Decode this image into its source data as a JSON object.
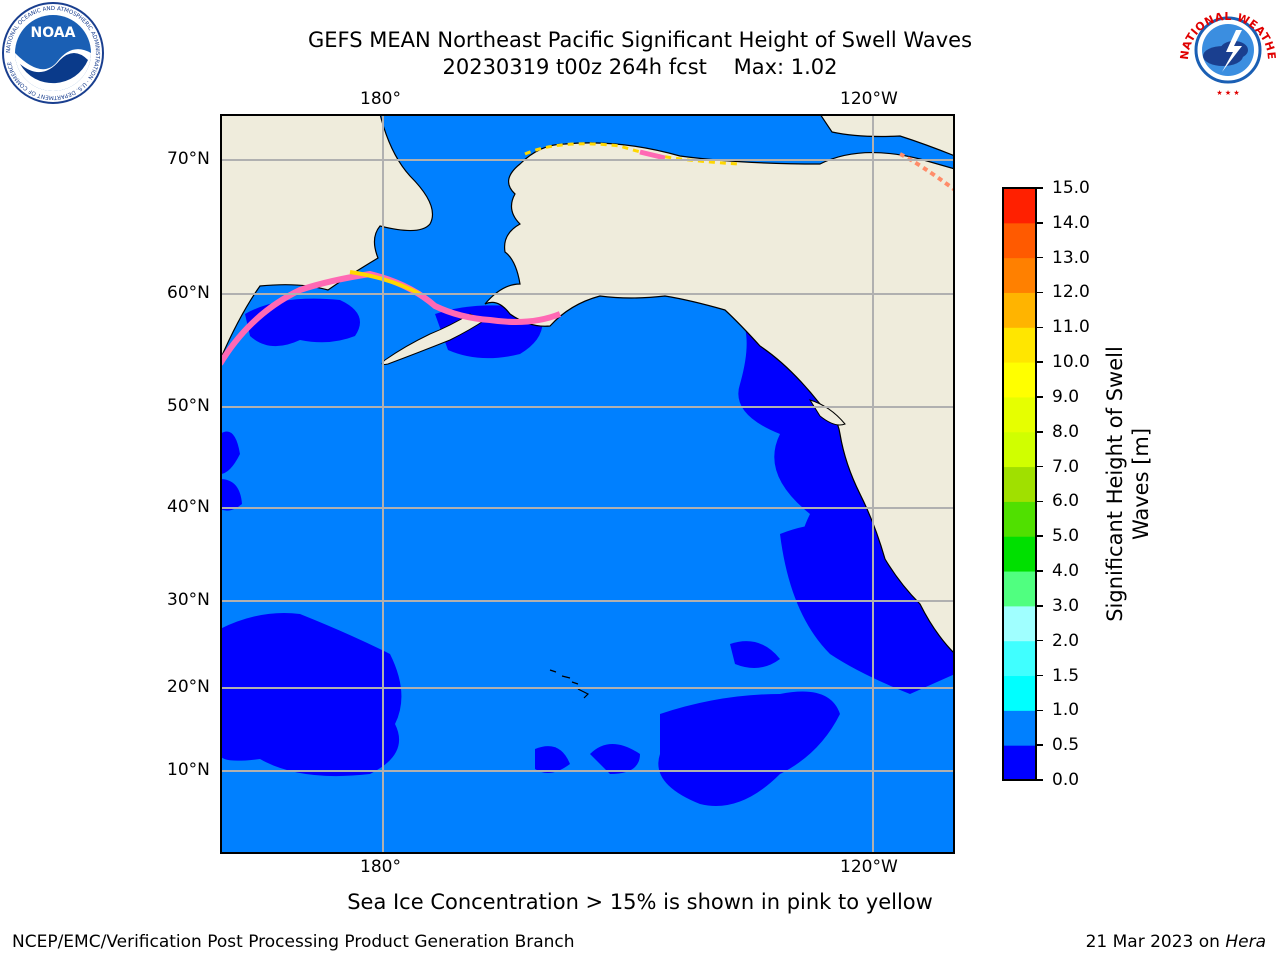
{
  "header": {
    "title_line1": "GEFS MEAN Northeast Pacific Significant Height of Swell Waves",
    "title_line2": "20230319 t00z 264h fcst    Max: 1.02"
  },
  "logos": {
    "left": {
      "text": "NOAA",
      "ring_text": "NATIONAL OCEANIC AND ATMOSPHERIC ADMINISTRATION · U.S. DEPARTMENT OF COMMERCE",
      "icon": "noaa-logo"
    },
    "right": {
      "ring_text": "NATIONAL WEATHER SERVICE",
      "icon": "nws-logo"
    }
  },
  "map": {
    "lon_labels": [
      "180°",
      "120°W"
    ],
    "lat_labels": [
      "70°N",
      "60°N",
      "50°N",
      "40°N",
      "30°N",
      "20°N",
      "10°N"
    ],
    "colors": {
      "land": "#efecdc",
      "ocean_low": "#0000ff",
      "ocean_mid": "#0080ff",
      "ice_pink": "#ff69b4",
      "ice_yellow": "#ffd700",
      "grid": "#b0b0b0"
    }
  },
  "colorbar": {
    "label_line1": "Significant Height of Swell",
    "label_line2": "Waves [m]",
    "ticks": [
      "15.0",
      "14.0",
      "13.0",
      "12.0",
      "11.0",
      "10.0",
      "9.0",
      "8.0",
      "7.0",
      "6.0",
      "5.0",
      "4.0",
      "3.0",
      "2.0",
      "1.5",
      "1.0",
      "0.5",
      "0.0"
    ],
    "colors_bottom_to_top": [
      "#0000ff",
      "#0080ff",
      "#00ffff",
      "#40ffff",
      "#a0ffff",
      "#50ff80",
      "#00e000",
      "#50e000",
      "#a0e000",
      "#d0ff00",
      "#e6ff00",
      "#ffff00",
      "#ffe600",
      "#ffb400",
      "#ff8000",
      "#ff5a00",
      "#ff2000"
    ]
  },
  "caption": "Sea Ice Concentration > 15% is shown in pink to yellow",
  "footer": {
    "left": "NCEP/EMC/Verification Post Processing Product Generation Branch",
    "date": "21 Mar 2023 on ",
    "host": "Hera"
  }
}
